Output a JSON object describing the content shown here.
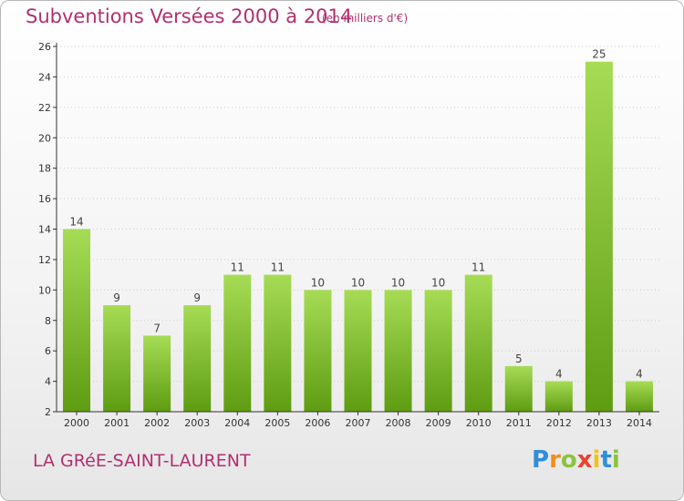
{
  "header": {
    "title": "Subventions Versées 2000 à 2014",
    "unit": "(en milliers d'€)"
  },
  "footer": {
    "commune": "LA GRéE-SAINT-LAURENT",
    "brand": "Proxiti",
    "brand_letters": [
      {
        "ch": "P",
        "color": "#2f8fd8"
      },
      {
        "ch": "r",
        "color": "#f28c1e"
      },
      {
        "ch": "o",
        "color": "#8ac43f"
      },
      {
        "ch": "x",
        "color": "#e8432f"
      },
      {
        "ch": "i",
        "color": "#f2c21e"
      },
      {
        "ch": "t",
        "color": "#2f8fd8"
      },
      {
        "ch": "i",
        "color": "#8ac43f"
      }
    ]
  },
  "colors": {
    "title": "#b03070",
    "bar_top": "#a6dc55",
    "bar_bottom": "#5e9c12",
    "axis": "#333333",
    "grid": "#cccccc"
  },
  "chart_data": {
    "type": "bar",
    "categories": [
      "2000",
      "2001",
      "2002",
      "2003",
      "2004",
      "2005",
      "2006",
      "2007",
      "2008",
      "2009",
      "2010",
      "2011",
      "2012",
      "2013",
      "2014"
    ],
    "values": [
      14,
      9,
      7,
      9,
      11,
      11,
      10,
      10,
      10,
      10,
      11,
      5,
      4,
      25,
      4
    ],
    "title": "Subventions Versées 2000 à 2014",
    "ylim": [
      2,
      26
    ],
    "yticks": [
      2,
      4,
      6,
      8,
      10,
      12,
      14,
      16,
      18,
      20,
      22,
      24,
      26
    ],
    "grid": true
  }
}
